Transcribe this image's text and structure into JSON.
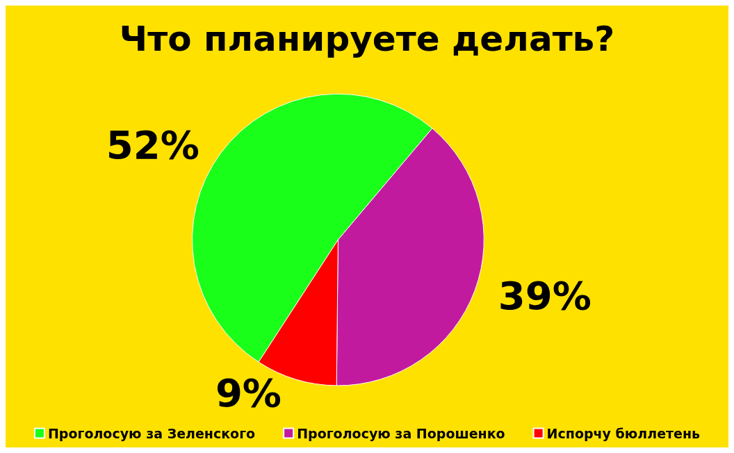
{
  "chart_data": {
    "type": "pie",
    "title": "Что планируете делать?",
    "categories": [
      "Проголосую за Зеленского",
      "Проголосую за Порошенко",
      "Испорчу бюллетень"
    ],
    "values": [
      52,
      39,
      9
    ],
    "colors": [
      "#1aff1a",
      "#c21a9e",
      "#ff0000"
    ],
    "value_labels": [
      "52%",
      "39%",
      "9%"
    ],
    "legend": "bottom"
  }
}
